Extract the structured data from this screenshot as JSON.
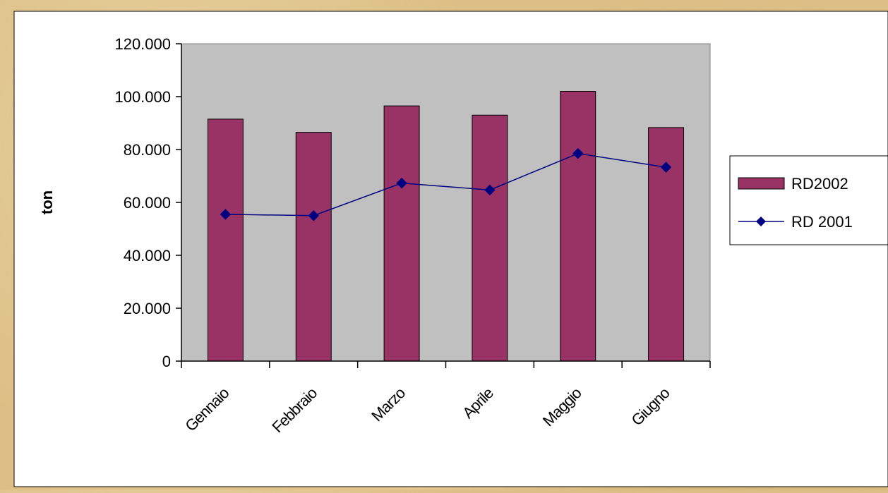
{
  "chart_data": {
    "type": "bar",
    "categories": [
      "Gennaio",
      "Febbraio",
      "Marzo",
      "Aprile",
      "Maggio",
      "Giugno"
    ],
    "series": [
      {
        "name": "RD2002",
        "type": "bar",
        "values": [
          91500,
          86500,
          96500,
          93000,
          102000,
          88300
        ],
        "color": "#993366"
      },
      {
        "name": "RD 2001",
        "type": "line",
        "values": [
          55500,
          55000,
          67300,
          64700,
          78500,
          73300
        ],
        "color": "#000080"
      }
    ],
    "ylabel": "ton",
    "xlabel": "",
    "ylim": [
      0,
      120000
    ],
    "yticks": [
      0,
      20000,
      40000,
      60000,
      80000,
      100000,
      120000
    ],
    "ytick_labels": [
      "0",
      "20.000",
      "40.000",
      "60.000",
      "80.000",
      "100.000",
      "120.000"
    ],
    "grid": false,
    "legend_position": "right",
    "plot_background": "#c0c0c0",
    "chart_background": "#ffffff"
  }
}
